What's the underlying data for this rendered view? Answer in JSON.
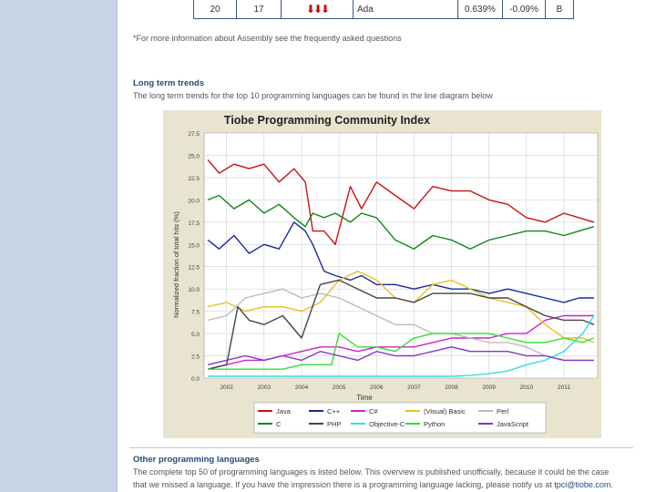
{
  "top_row": {
    "rank_2011": "20",
    "rank_2010": "17",
    "language": "Ada",
    "rating": "0.639%",
    "delta": "-0.09%",
    "status": "B"
  },
  "note": "*For more information about Assembly see the frequently asked questions",
  "long_term": {
    "heading": "Long term trends",
    "text": "The long term trends for the top 10 programming languages can be found in the line diagram below"
  },
  "other": {
    "heading": "Other programming languages",
    "line1": "The complete top 50 of programming languages is listed below. This overview is published unofficially, because it could be the case",
    "line2_prefix": "that we missed a language. If you have the impression there is a programming language lacking, please notify us at ",
    "line2_link": "tpci@tiobe.com",
    "line2_suffix": "."
  },
  "chart_data": {
    "type": "line",
    "title": "Tiobe Programming Community Index",
    "xlabel": "Time",
    "ylabel": "Normalized fraction of total hits (%)",
    "xlim": [
      2001.4,
      2011.9
    ],
    "ylim": [
      0,
      27.5
    ],
    "yticks": [
      0.0,
      2.5,
      5.0,
      7.5,
      10.0,
      12.5,
      15.0,
      17.5,
      20.0,
      22.5,
      25.0,
      27.5
    ],
    "xticks": [
      2002,
      2003,
      2004,
      2005,
      2006,
      2007,
      2008,
      2009,
      2010,
      2011
    ],
    "legend_position": "bottom",
    "series": [
      {
        "name": "Java",
        "color": "#cc1111",
        "x": [
          2001.5,
          2001.8,
          2002.2,
          2002.6,
          2003.0,
          2003.4,
          2003.8,
          2004.1,
          2004.3,
          2004.6,
          2004.9,
          2005.3,
          2005.6,
          2006.0,
          2006.5,
          2007.0,
          2007.5,
          2008.0,
          2008.5,
          2009.0,
          2009.5,
          2010.0,
          2010.5,
          2011.0,
          2011.4,
          2011.8
        ],
        "values": [
          24.5,
          23.0,
          24.0,
          23.5,
          24.0,
          22.0,
          23.5,
          22.0,
          16.5,
          16.5,
          15.0,
          21.5,
          19.0,
          22.0,
          20.5,
          19.0,
          21.5,
          21.0,
          21.0,
          20.0,
          19.5,
          18.0,
          17.5,
          18.5,
          18.0,
          17.5
        ]
      },
      {
        "name": "C++",
        "color": "#1a2aa0",
        "x": [
          2001.5,
          2001.8,
          2002.2,
          2002.6,
          2003.0,
          2003.4,
          2003.8,
          2004.1,
          2004.3,
          2004.6,
          2004.9,
          2005.3,
          2005.6,
          2006.0,
          2006.5,
          2007.0,
          2007.5,
          2008.0,
          2008.5,
          2009.0,
          2009.5,
          2010.0,
          2010.5,
          2011.0,
          2011.4,
          2011.8
        ],
        "values": [
          15.5,
          14.5,
          16.0,
          14.0,
          15.0,
          14.5,
          17.5,
          16.5,
          15.0,
          12.0,
          11.5,
          11.0,
          11.5,
          10.5,
          10.5,
          10.0,
          10.5,
          10.0,
          10.0,
          9.5,
          10.0,
          9.5,
          9.0,
          8.5,
          9.0,
          9.0
        ]
      },
      {
        "name": "C#",
        "color": "#cc22cc",
        "x": [
          2001.5,
          2002.0,
          2002.5,
          2003.0,
          2003.5,
          2004.0,
          2004.5,
          2005.0,
          2005.5,
          2006.0,
          2006.5,
          2007.0,
          2007.5,
          2008.0,
          2008.5,
          2009.0,
          2009.5,
          2010.0,
          2010.5,
          2011.0,
          2011.5,
          2011.8
        ],
        "values": [
          1.0,
          1.5,
          2.0,
          2.0,
          2.5,
          3.0,
          3.5,
          3.5,
          3.0,
          3.5,
          3.5,
          3.5,
          4.0,
          4.5,
          4.5,
          4.5,
          5.0,
          5.0,
          6.5,
          7.0,
          7.0,
          7.0
        ]
      },
      {
        "name": "(Visual) Basic",
        "color": "#e8c020",
        "x": [
          2001.5,
          2002.0,
          2002.5,
          2003.0,
          2003.5,
          2004.0,
          2004.5,
          2005.0,
          2005.5,
          2006.0,
          2006.5,
          2007.0,
          2007.5,
          2008.0,
          2008.5,
          2009.0,
          2009.5,
          2010.0,
          2010.5,
          2011.0,
          2011.5,
          2011.8
        ],
        "values": [
          8.0,
          8.5,
          7.5,
          8.0,
          8.0,
          7.5,
          8.5,
          11.0,
          12.0,
          11.0,
          9.0,
          8.5,
          10.5,
          11.0,
          10.0,
          9.0,
          8.5,
          8.0,
          6.0,
          4.5,
          4.5,
          4.0
        ]
      },
      {
        "name": "Perl",
        "color": "#bbbbbb",
        "x": [
          2001.5,
          2002.0,
          2002.5,
          2003.0,
          2003.5,
          2004.0,
          2004.5,
          2005.0,
          2005.5,
          2006.0,
          2006.5,
          2007.0,
          2007.5,
          2008.0,
          2008.5,
          2009.0,
          2009.5,
          2010.0,
          2010.5,
          2011.0,
          2011.5,
          2011.8
        ],
        "values": [
          6.5,
          7.0,
          9.0,
          9.5,
          10.0,
          9.0,
          9.5,
          9.0,
          8.0,
          7.0,
          6.0,
          6.0,
          5.0,
          5.0,
          4.5,
          4.0,
          4.0,
          3.5,
          2.5,
          2.0,
          2.0,
          2.0
        ]
      },
      {
        "name": "C",
        "color": "#118811",
        "x": [
          2001.5,
          2001.8,
          2002.2,
          2002.6,
          2003.0,
          2003.4,
          2003.8,
          2004.1,
          2004.3,
          2004.6,
          2004.9,
          2005.3,
          2005.6,
          2006.0,
          2006.5,
          2007.0,
          2007.5,
          2008.0,
          2008.5,
          2009.0,
          2009.5,
          2010.0,
          2010.5,
          2011.0,
          2011.4,
          2011.8
        ],
        "values": [
          20.0,
          20.5,
          19.0,
          20.0,
          18.5,
          19.5,
          18.0,
          17.0,
          18.5,
          18.0,
          18.5,
          17.5,
          18.5,
          18.0,
          15.5,
          14.5,
          16.0,
          15.5,
          14.5,
          15.5,
          16.0,
          16.5,
          16.5,
          16.0,
          16.5,
          17.0
        ]
      },
      {
        "name": "PHP",
        "color": "#444444",
        "x": [
          2001.5,
          2002.0,
          2002.3,
          2002.6,
          2003.0,
          2003.5,
          2004.0,
          2004.5,
          2005.0,
          2005.5,
          2006.0,
          2006.5,
          2007.0,
          2007.5,
          2008.0,
          2008.5,
          2009.0,
          2009.5,
          2010.0,
          2010.5,
          2011.0,
          2011.5,
          2011.8
        ],
        "values": [
          1.0,
          1.5,
          8.0,
          6.5,
          6.0,
          7.0,
          4.5,
          10.5,
          11.0,
          10.0,
          9.0,
          9.0,
          8.5,
          9.5,
          9.5,
          9.5,
          9.0,
          9.0,
          8.0,
          7.0,
          6.5,
          6.5,
          6.0
        ]
      },
      {
        "name": "Objective-C",
        "color": "#33dddd",
        "x": [
          2001.5,
          2002.0,
          2003.0,
          2004.0,
          2005.0,
          2006.0,
          2007.0,
          2008.0,
          2008.5,
          2009.0,
          2009.5,
          2010.0,
          2010.5,
          2011.0,
          2011.5,
          2011.8
        ],
        "values": [
          0.2,
          0.2,
          0.2,
          0.2,
          0.2,
          0.2,
          0.2,
          0.2,
          0.3,
          0.5,
          0.8,
          1.5,
          2.0,
          3.0,
          5.0,
          7.0
        ]
      },
      {
        "name": "Python",
        "color": "#33dd33",
        "x": [
          2001.5,
          2002.0,
          2002.5,
          2003.0,
          2003.5,
          2004.0,
          2004.5,
          2004.8,
          2005.0,
          2005.5,
          2006.0,
          2006.5,
          2007.0,
          2007.5,
          2008.0,
          2008.5,
          2009.0,
          2009.5,
          2010.0,
          2010.5,
          2011.0,
          2011.5,
          2011.8
        ],
        "values": [
          1.0,
          1.0,
          1.0,
          1.0,
          1.0,
          1.5,
          1.5,
          1.5,
          5.0,
          3.5,
          3.5,
          3.0,
          4.5,
          5.0,
          5.0,
          5.0,
          5.0,
          4.5,
          4.0,
          4.0,
          4.5,
          4.0,
          4.5
        ]
      },
      {
        "name": "JavaScript",
        "color": "#8833cc",
        "x": [
          2001.5,
          2002.0,
          2002.5,
          2003.0,
          2003.5,
          2004.0,
          2004.5,
          2005.0,
          2005.5,
          2006.0,
          2006.5,
          2007.0,
          2007.5,
          2008.0,
          2008.5,
          2009.0,
          2009.5,
          2010.0,
          2010.5,
          2011.0,
          2011.5,
          2011.8
        ],
        "values": [
          1.5,
          2.0,
          2.5,
          2.0,
          2.5,
          2.0,
          3.0,
          2.5,
          2.0,
          3.0,
          2.5,
          2.5,
          3.0,
          3.5,
          3.0,
          3.0,
          3.0,
          2.5,
          2.5,
          2.0,
          2.0,
          2.0
        ]
      }
    ]
  }
}
